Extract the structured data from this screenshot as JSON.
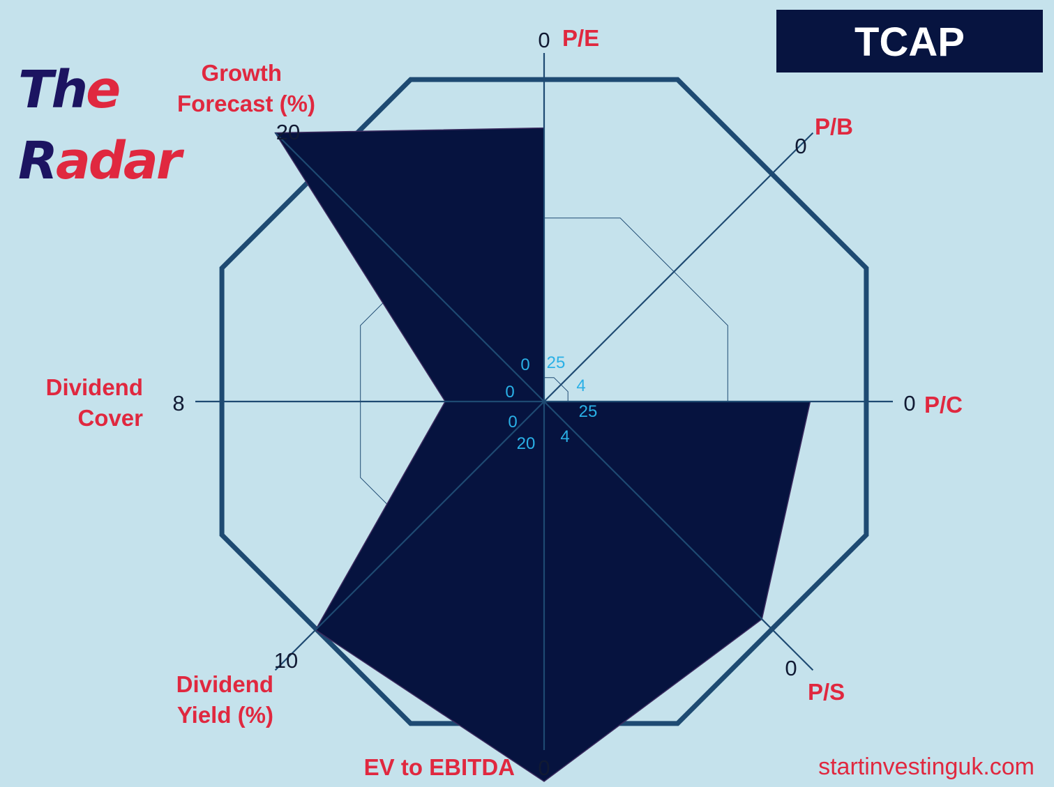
{
  "brand": {
    "logo_line1_a": "Th",
    "logo_line1_b": "e",
    "logo_line2_a": "R",
    "logo_line2_b": "adar"
  },
  "ticker": "TCAP",
  "site": "startinvestinguk.com",
  "colors": {
    "background": "#c5e2ec",
    "octagon": "#1e4a72",
    "fill": "#06133f",
    "category_label": "#e0283f",
    "inner_scale": "#2ab0e6",
    "ticker_bg": "#071440"
  },
  "chart_data": {
    "type": "radar",
    "title": "",
    "axes": [
      {
        "label": "P/E",
        "outer_value": "0",
        "inner_value": "25"
      },
      {
        "label": "P/B",
        "outer_value": "0",
        "inner_value": "4"
      },
      {
        "label": "P/C",
        "outer_value": "0",
        "inner_value": "25"
      },
      {
        "label": "P/S",
        "outer_value": "0",
        "inner_value": "4"
      },
      {
        "label": "EV to EBITDA",
        "outer_value": "0",
        "inner_value": "20"
      },
      {
        "label": "Dividend Yield (%)",
        "outer_value": "10",
        "inner_value": "0"
      },
      {
        "label": "Dividend Cover",
        "outer_value": "8",
        "inner_value": "0"
      },
      {
        "label": "Growth Forecast (%)",
        "outer_value": "20",
        "inner_value": "0"
      }
    ],
    "series": [
      {
        "values": [
          0.72,
          0,
          0.7,
          0.81,
          1.0,
          0.85,
          0.26,
          1.0
        ]
      }
    ],
    "grid": "octagon rings",
    "legend": "none"
  }
}
